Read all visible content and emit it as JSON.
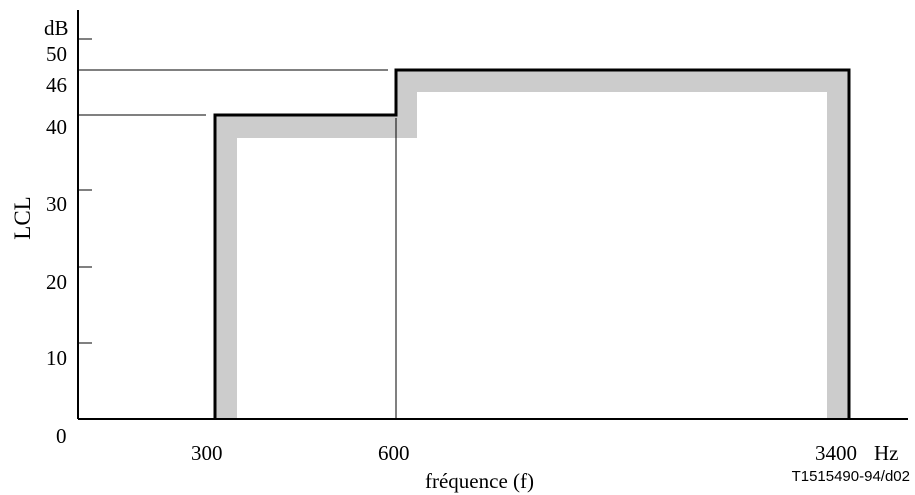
{
  "figure": {
    "y_axis": {
      "label": "LCL",
      "unit": "dB",
      "tick_labels": [
        "50",
        "46",
        "40",
        "30",
        "20",
        "10",
        "0"
      ]
    },
    "x_axis": {
      "label": "fréquence (f)",
      "tick_labels": [
        "300",
        "600",
        "3400",
        "Hz"
      ]
    },
    "reference_code": "T1515490-94/d02"
  },
  "chart_data": {
    "type": "line",
    "xlabel": "fréquence (f)",
    "ylabel": "LCL",
    "y_unit": "dB",
    "x_unit": "Hz",
    "ylim": [
      0,
      50
    ],
    "yticks": [
      0,
      10,
      20,
      30,
      40,
      46,
      50
    ],
    "xticks": [
      300,
      600,
      3400
    ],
    "grid": false,
    "legend": "none",
    "series": [
      {
        "style": "black-boundary",
        "points": [
          {
            "x": 300,
            "y": 0
          },
          {
            "x": 300,
            "y": 40
          },
          {
            "x": 600,
            "y": 40
          },
          {
            "x": 600,
            "y": 46
          },
          {
            "x": 3400,
            "y": 46
          },
          {
            "x": 3400,
            "y": 0
          }
        ]
      }
    ],
    "colors": {
      "boundary": "#000000",
      "shading": "#cccccc"
    }
  }
}
